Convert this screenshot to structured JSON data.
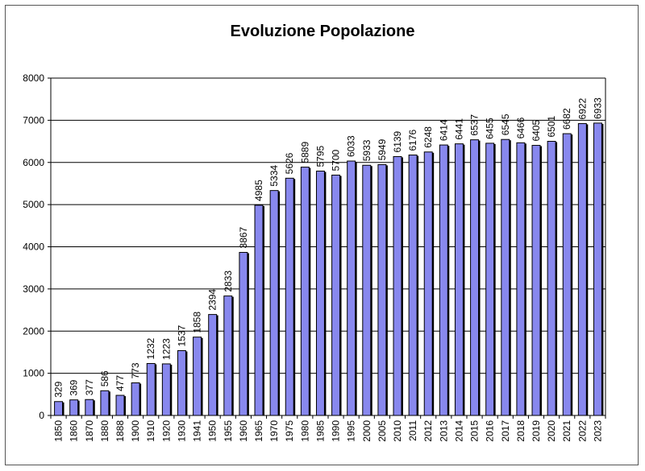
{
  "chart_data": {
    "type": "bar",
    "title": "Evoluzione Popolazione",
    "xlabel": "",
    "ylabel": "",
    "ylim": [
      0,
      8000
    ],
    "yticks": [
      0,
      1000,
      2000,
      3000,
      4000,
      5000,
      6000,
      7000,
      8000
    ],
    "grid": true,
    "bar_color": "#8888ee",
    "categories": [
      "1850",
      "1860",
      "1870",
      "1880",
      "1888",
      "1900",
      "1910",
      "1920",
      "1930",
      "1941",
      "1950",
      "1955",
      "1960",
      "1965",
      "1970",
      "1975",
      "1980",
      "1985",
      "1990",
      "1995",
      "2000",
      "2005",
      "2010",
      "2011",
      "2012",
      "2013",
      "2014",
      "2015",
      "2016",
      "2017",
      "2018",
      "2019",
      "2020",
      "2021",
      "2022",
      "2023"
    ],
    "values": [
      329,
      369,
      377,
      586,
      477,
      773,
      1232,
      1223,
      1537,
      1858,
      2394,
      2833,
      3867,
      4985,
      5334,
      5626,
      5889,
      5795,
      5700,
      6033,
      5933,
      5949,
      6139,
      6176,
      6248,
      6414,
      6441,
      6537,
      6455,
      6545,
      6466,
      6405,
      6501,
      6682,
      6922,
      6933
    ]
  }
}
